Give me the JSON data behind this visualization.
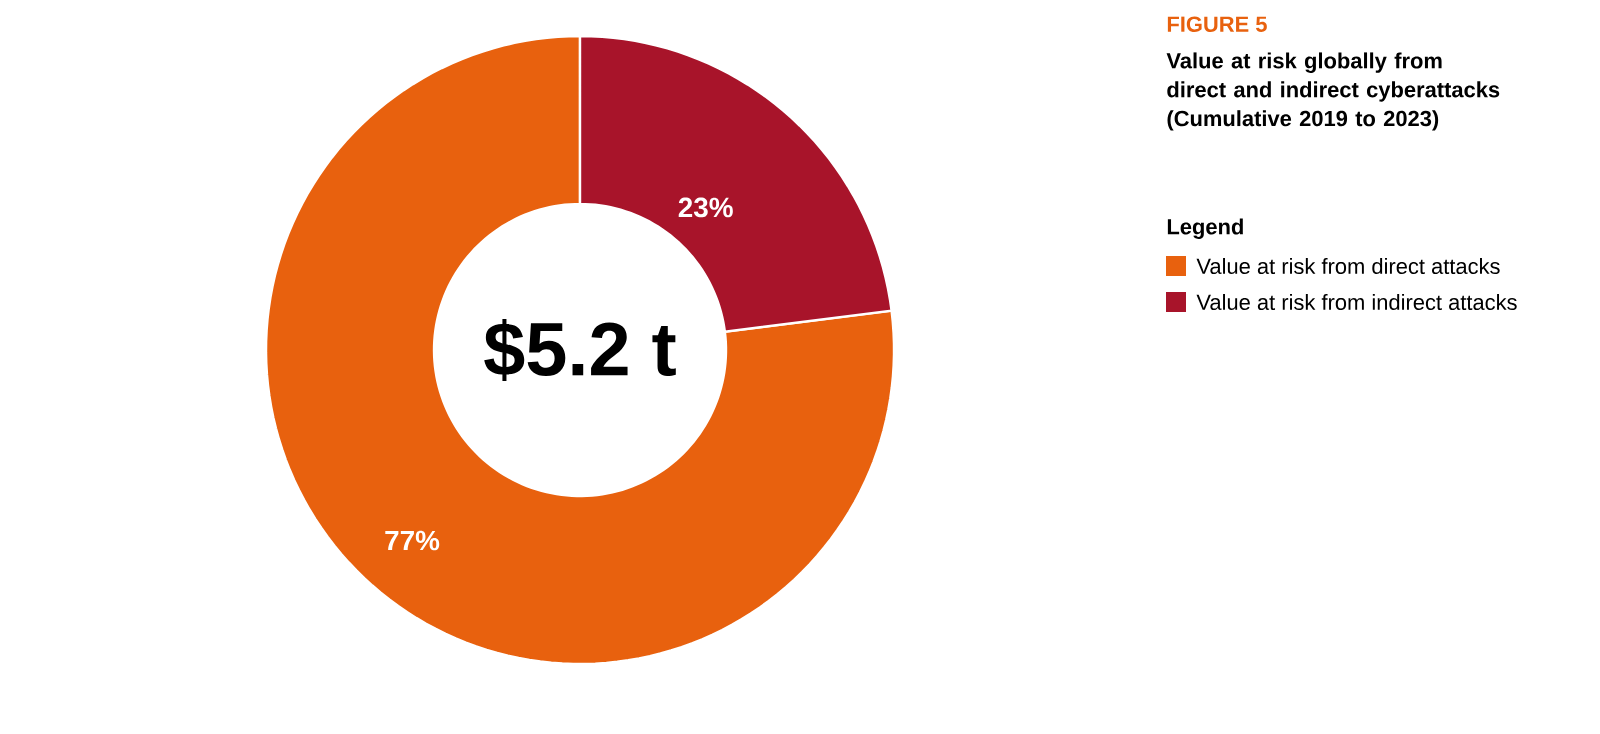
{
  "chart_data": {
    "type": "donut",
    "title": "FIGURE 5",
    "subtitle": "Value at risk globally from direct and indirect cyberattacks (Cumulative 2019 to 2023)",
    "legend_title": "Legend",
    "categories": [
      "Value at risk from direct attacks",
      "Value at risk from indirect attacks"
    ],
    "values": [
      77,
      23
    ],
    "colors": [
      "#e8610e",
      "#a8142a"
    ],
    "value_labels": [
      "77%",
      "23%"
    ],
    "annotations": [
      "$5.2 t"
    ],
    "legend": "right"
  }
}
